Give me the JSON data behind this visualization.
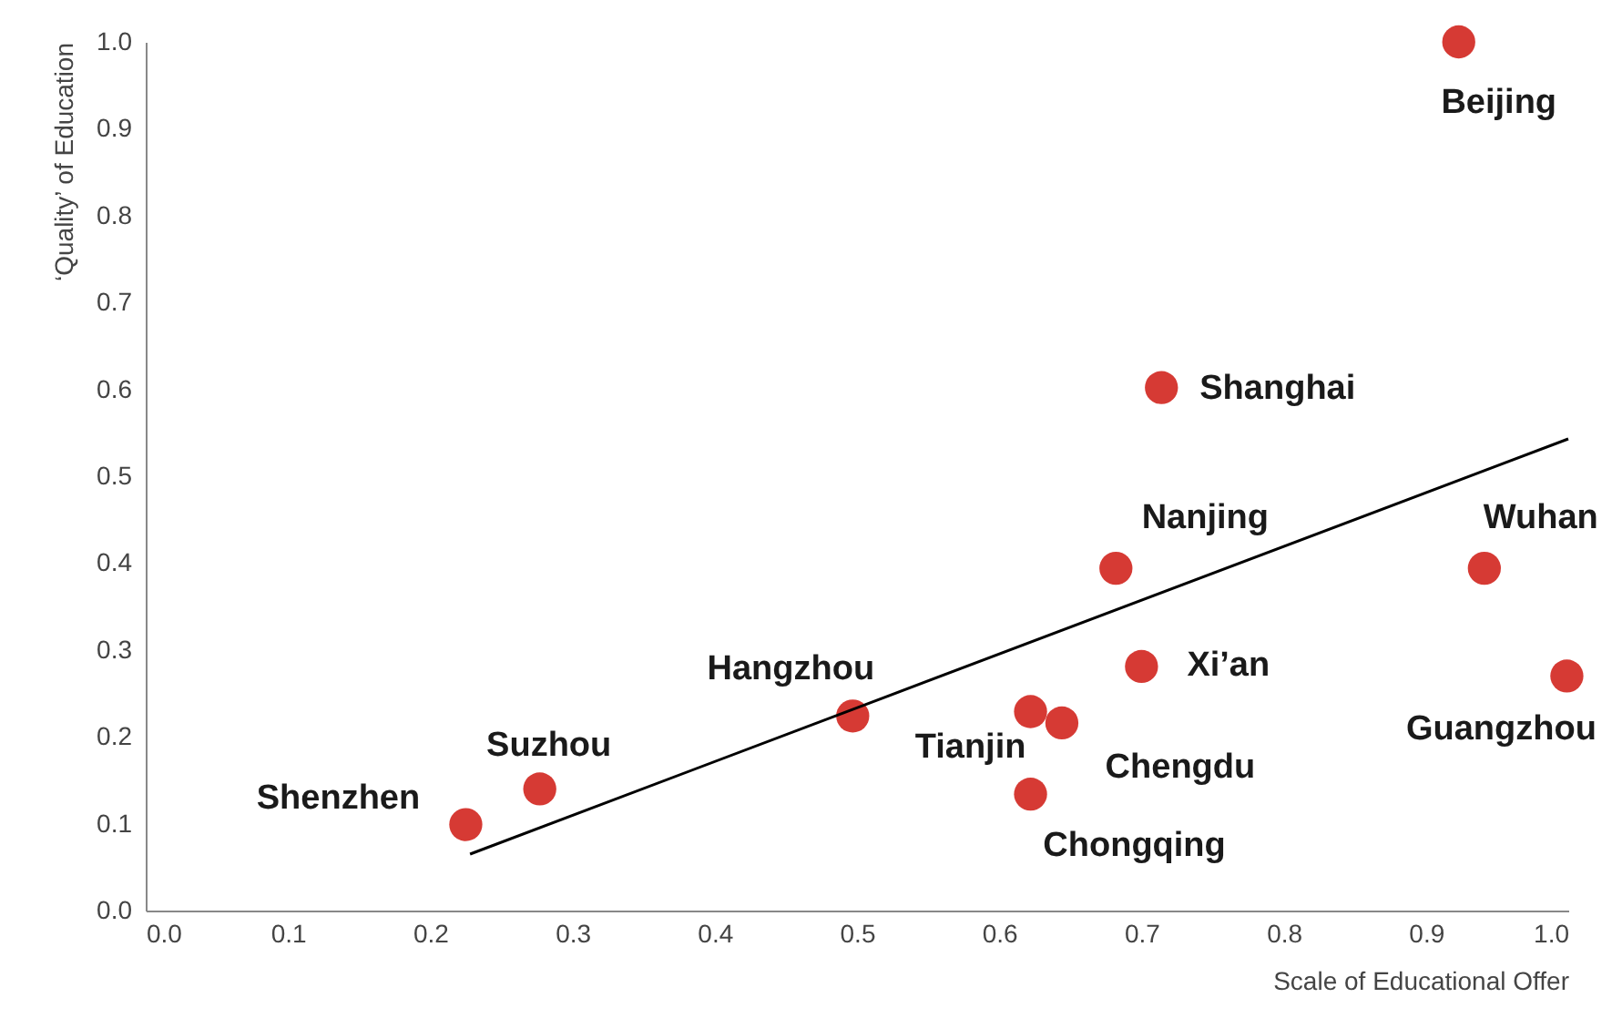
{
  "chart_data": {
    "type": "scatter",
    "xlabel": "Scale of Educational Offer",
    "ylabel": "‘Quality’ of Education",
    "xlim": [
      0,
      1
    ],
    "ylim": [
      0,
      1
    ],
    "xticks": [
      {
        "value": 0,
        "label": "0.0"
      },
      {
        "value": 0.1,
        "label": "0.1"
      },
      {
        "value": 0.2,
        "label": "0.2"
      },
      {
        "value": 0.3,
        "label": "0.3"
      },
      {
        "value": 0.4,
        "label": "0.4"
      },
      {
        "value": 0.5,
        "label": "0.5"
      },
      {
        "value": 0.6,
        "label": "0.6"
      },
      {
        "value": 0.7,
        "label": "0.7"
      },
      {
        "value": 0.8,
        "label": "0.8"
      },
      {
        "value": 0.9,
        "label": "0.9"
      },
      {
        "value": 1,
        "label": "1.0"
      }
    ],
    "yticks": [
      {
        "value": 0,
        "label": "0.0"
      },
      {
        "value": 0.1,
        "label": "0.1"
      },
      {
        "value": 0.2,
        "label": "0.2"
      },
      {
        "value": 0.3,
        "label": "0.3"
      },
      {
        "value": 0.4,
        "label": "0.4"
      },
      {
        "value": 0.5,
        "label": "0.5"
      },
      {
        "value": 0.6,
        "label": "0.6"
      },
      {
        "value": 0.7,
        "label": "0.7"
      },
      {
        "value": 0.8,
        "label": "0.8"
      },
      {
        "value": 0.9,
        "label": "0.9"
      },
      {
        "value": 1,
        "label": "1.0"
      }
    ],
    "grid": false,
    "marker": "circle",
    "series": [
      {
        "type": "scatter",
        "color": "#d63a34",
        "x": [
          0.923,
          0.714,
          0.682,
          0.941,
          0.7,
          0.999,
          0.497,
          0.622,
          0.644,
          0.622,
          0.277,
          0.225
        ],
        "values": [
          1.0,
          0.602,
          0.394,
          0.394,
          0.281,
          0.27,
          0.224,
          0.229,
          0.216,
          0.134,
          0.14,
          0.099
        ]
      },
      {
        "type": "line",
        "color": "#000000",
        "x": [
          0.228,
          1.0
        ],
        "values": [
          0.065,
          0.543
        ],
        "line_style": "solid",
        "marker": "none"
      }
    ],
    "annotations": [
      {
        "text": "Beijing",
        "x": 0.923,
        "y": 1.0
      },
      {
        "text": "Shanghai",
        "x": 0.714,
        "y": 0.602
      },
      {
        "text": "Nanjing",
        "x": 0.682,
        "y": 0.394
      },
      {
        "text": "Wuhan",
        "x": 0.941,
        "y": 0.394
      },
      {
        "text": "Xi’an",
        "x": 0.7,
        "y": 0.281
      },
      {
        "text": "Guangzhou",
        "x": 0.999,
        "y": 0.27
      },
      {
        "text": "Hangzhou",
        "x": 0.497,
        "y": 0.224
      },
      {
        "text": "Tianjin",
        "x": 0.622,
        "y": 0.229
      },
      {
        "text": "Chengdu",
        "x": 0.644,
        "y": 0.216
      },
      {
        "text": "Chongqing",
        "x": 0.622,
        "y": 0.134
      },
      {
        "text": "Suzhou",
        "x": 0.277,
        "y": 0.14
      },
      {
        "text": "Shenzhen",
        "x": 0.225,
        "y": 0.099
      }
    ]
  }
}
